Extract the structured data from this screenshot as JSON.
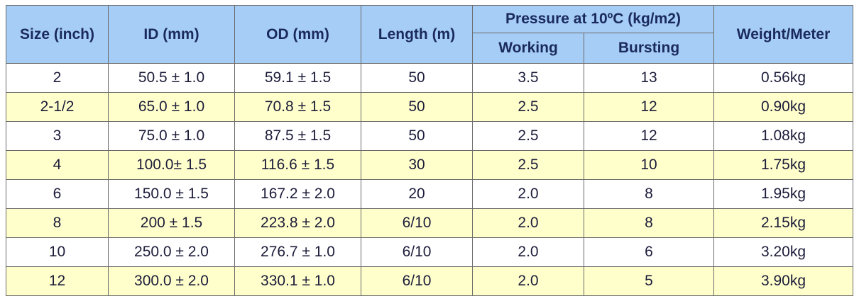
{
  "table": {
    "header": {
      "size": "Size (inch)",
      "id": "ID (mm)",
      "od": "OD (mm)",
      "length": "Length (m)",
      "pressure": "Pressure at 10ºC (kg/m2)",
      "working": "Working",
      "bursting": "Bursting",
      "weight": "Weight/Meter"
    },
    "rows": [
      [
        "2",
        "50.5 ± 1.0",
        "59.1 ± 1.5",
        "50",
        "3.5",
        "13",
        "0.56kg"
      ],
      [
        "2-1/2",
        "65.0 ± 1.0",
        "70.8 ± 1.5",
        "50",
        "2.5",
        "12",
        "0.90kg"
      ],
      [
        "3",
        "75.0 ± 1.0",
        "87.5 ± 1.5",
        "50",
        "2.5",
        "12",
        "1.08kg"
      ],
      [
        "4",
        "100.0± 1.5",
        "116.6 ± 1.5",
        "30",
        "2.5",
        "10",
        "1.75kg"
      ],
      [
        "6",
        "150.0 ± 1.5",
        "167.2 ± 2.0",
        "20",
        "2.0",
        "8",
        "1.95kg"
      ],
      [
        "8",
        "200 ± 1.5",
        "223.8 ± 2.0",
        "6/10",
        "2.0",
        "8",
        "2.15kg"
      ],
      [
        "10",
        "250.0 ± 2.0",
        "276.7 ± 1.0",
        "6/10",
        "2.0",
        "6",
        "3.20kg"
      ],
      [
        "12",
        "300.0 ± 2.0",
        "330.1 ± 1.0",
        "6/10",
        "2.0",
        "5",
        "3.90kg"
      ]
    ]
  }
}
